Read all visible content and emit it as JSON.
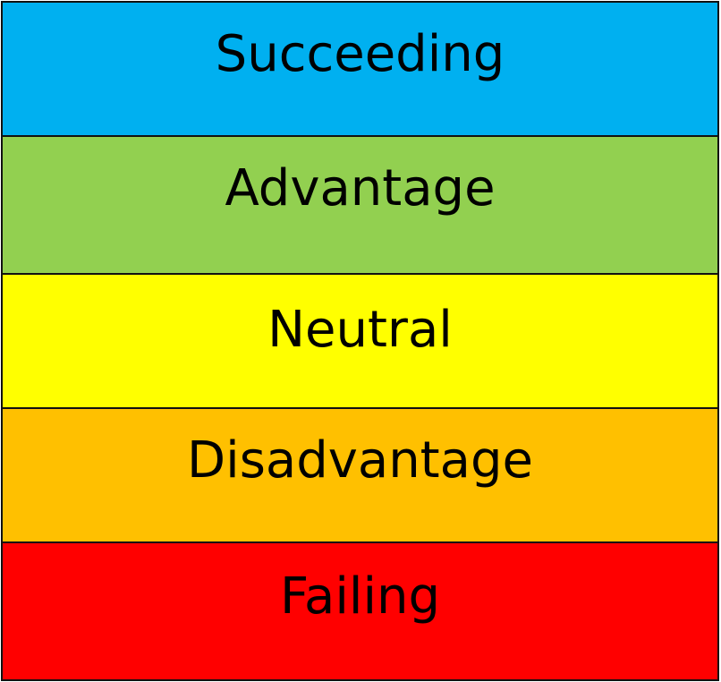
{
  "levels": [
    {
      "label": "Succeeding",
      "color": "#00b0f0"
    },
    {
      "label": "Advantage",
      "color": "#92d050"
    },
    {
      "label": "Neutral",
      "color": "#ffff00"
    },
    {
      "label": "Disadvantage",
      "color": "#ffc000"
    },
    {
      "label": "Failing",
      "color": "#ff0000"
    }
  ]
}
